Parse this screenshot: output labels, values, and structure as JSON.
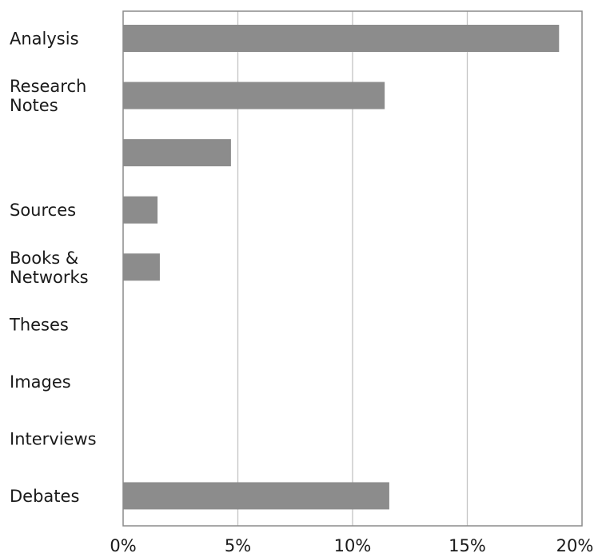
{
  "chart_data": {
    "type": "bar",
    "orientation": "horizontal",
    "categories": [
      [
        "Analysis"
      ],
      [
        "Research",
        "Notes"
      ],
      [
        ""
      ],
      [
        "Sources"
      ],
      [
        "Books &",
        "Networks"
      ],
      [
        "Theses"
      ],
      [
        "Images"
      ],
      [
        "Interviews"
      ],
      [
        "Debates"
      ]
    ],
    "values": [
      19.0,
      11.4,
      4.7,
      1.5,
      1.6,
      0,
      0,
      0,
      11.6
    ],
    "xlim": [
      0,
      20
    ],
    "xticks": [
      0,
      5,
      10,
      15,
      20
    ],
    "xtick_labels": [
      "0%",
      "5%",
      "10%",
      "15%",
      "20%"
    ],
    "grid": "vertical",
    "legend": "none",
    "colors": {
      "bar": "#8c8c8c",
      "gridline": "#c4c4c4",
      "frame": "#8a8a8a",
      "text": "#1a1a1a"
    }
  }
}
